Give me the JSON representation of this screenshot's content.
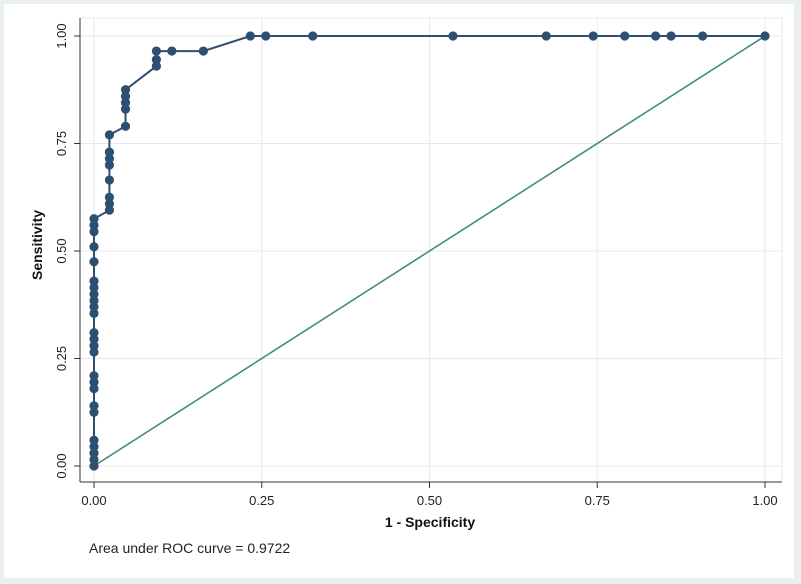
{
  "chart_data": {
    "type": "line",
    "title": "",
    "xlabel": "1 - Specificity",
    "ylabel": "Sensitivity",
    "xlim": [
      0,
      1
    ],
    "ylim": [
      0,
      1
    ],
    "x_ticks": [
      "0.00",
      "0.25",
      "0.50",
      "0.75",
      "1.00"
    ],
    "y_ticks": [
      "0.00",
      "0.25",
      "0.50",
      "0.75",
      "1.00"
    ],
    "grid": true,
    "annotation": "Area under ROC curve = 0.9722",
    "colors": {
      "roc_curve": "#2c4f72",
      "reference_line": "#3f8f74",
      "grid": "#e6eaee",
      "plot_background": "#ffffff",
      "outer_background": "#eaeff2"
    },
    "series": [
      {
        "kind": "roc",
        "points": [
          [
            0,
            0
          ],
          [
            0,
            0.015
          ],
          [
            0,
            0.03
          ],
          [
            0,
            0.045
          ],
          [
            0,
            0.06
          ],
          [
            0,
            0.125
          ],
          [
            0,
            0.14
          ],
          [
            0,
            0.18
          ],
          [
            0,
            0.195
          ],
          [
            0,
            0.21
          ],
          [
            0,
            0.265
          ],
          [
            0,
            0.28
          ],
          [
            0,
            0.295
          ],
          [
            0,
            0.31
          ],
          [
            0,
            0.355
          ],
          [
            0,
            0.37
          ],
          [
            0,
            0.385
          ],
          [
            0,
            0.4
          ],
          [
            0,
            0.415
          ],
          [
            0,
            0.43
          ],
          [
            0,
            0.475
          ],
          [
            0,
            0.51
          ],
          [
            0,
            0.545
          ],
          [
            0,
            0.56
          ],
          [
            0,
            0.575
          ],
          [
            0.023,
            0.595
          ],
          [
            0.023,
            0.61
          ],
          [
            0.023,
            0.625
          ],
          [
            0.023,
            0.665
          ],
          [
            0.023,
            0.7
          ],
          [
            0.023,
            0.715
          ],
          [
            0.023,
            0.73
          ],
          [
            0.023,
            0.77
          ],
          [
            0.047,
            0.79
          ],
          [
            0.047,
            0.83
          ],
          [
            0.047,
            0.845
          ],
          [
            0.047,
            0.86
          ],
          [
            0.047,
            0.875
          ],
          [
            0.093,
            0.93
          ],
          [
            0.093,
            0.945
          ],
          [
            0.093,
            0.965
          ],
          [
            0.116,
            0.965
          ],
          [
            0.163,
            0.965
          ],
          [
            0.233,
            1.0
          ],
          [
            0.256,
            1.0
          ],
          [
            0.326,
            1.0
          ],
          [
            0.535,
            1.0
          ],
          [
            0.674,
            1.0
          ],
          [
            0.744,
            1.0
          ],
          [
            0.791,
            1.0
          ],
          [
            0.837,
            1.0
          ],
          [
            0.86,
            1.0
          ],
          [
            0.907,
            1.0
          ],
          [
            1.0,
            1.0
          ]
        ]
      },
      {
        "kind": "reference",
        "points": [
          [
            0,
            0
          ],
          [
            1,
            1
          ]
        ]
      }
    ]
  }
}
